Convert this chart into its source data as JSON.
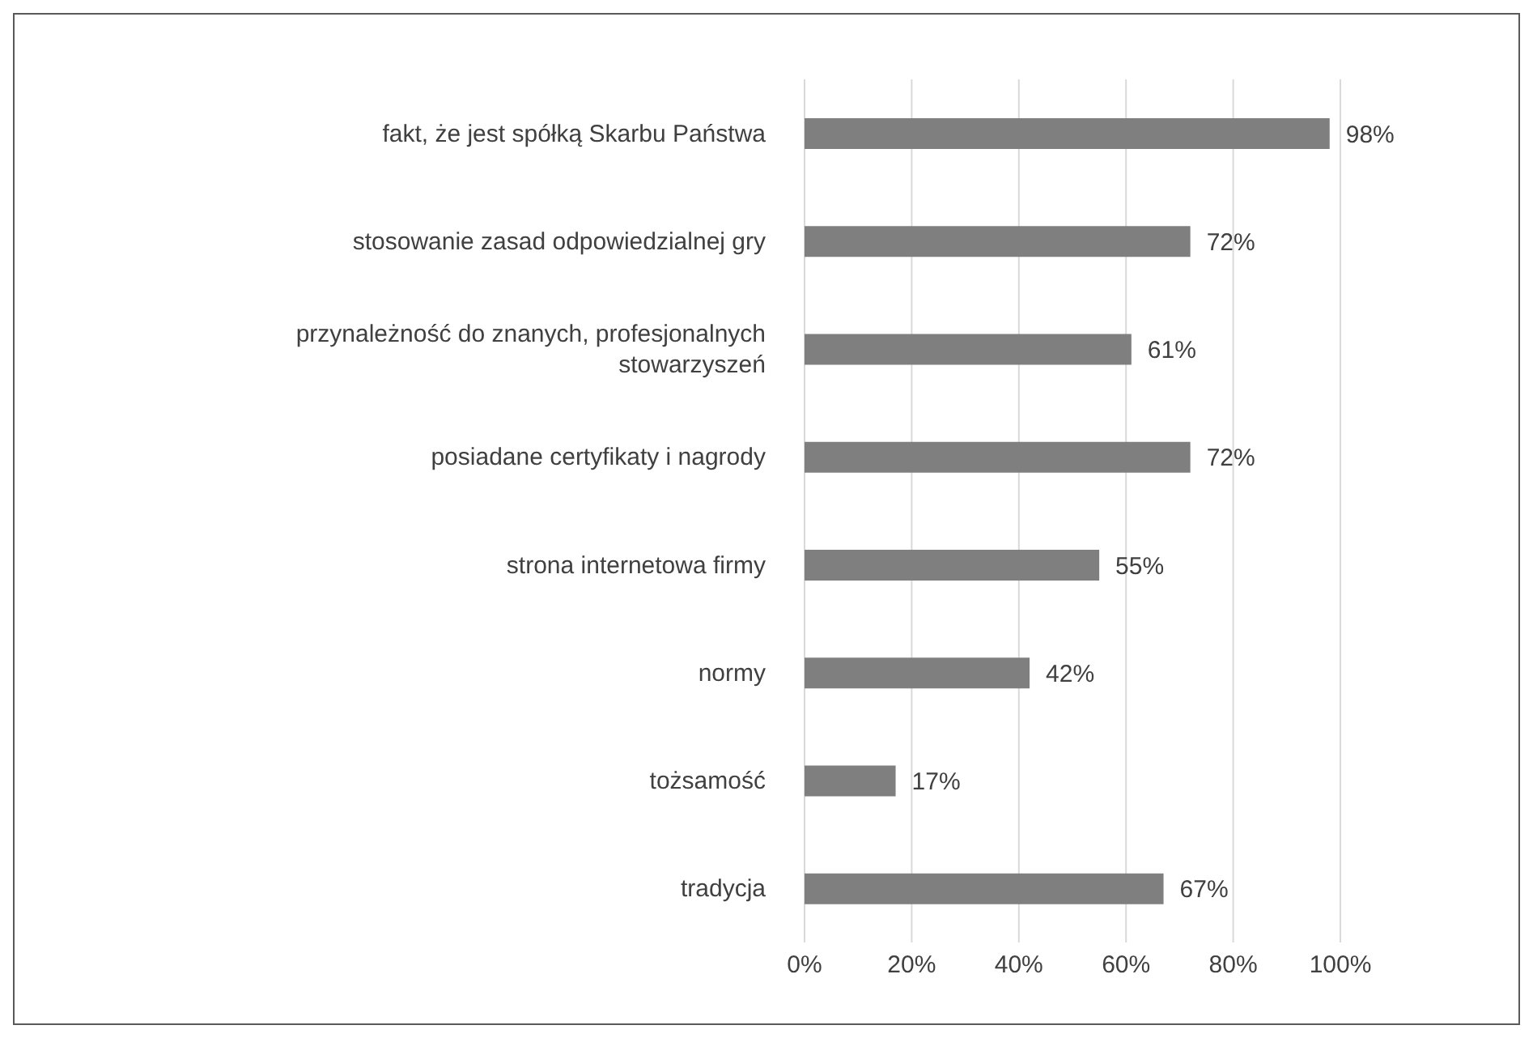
{
  "chart_data": {
    "type": "bar",
    "orientation": "horizontal",
    "categories": [
      "fakt, że jest spółką Skarbu Państwa",
      "stosowanie zasad odpowiedzialnej gry",
      "przynależność do znanych, profesjonalnych stowarzyszeń",
      "posiadane certyfikaty i nagrody",
      "strona internetowa firmy",
      "normy",
      "tożsamość",
      "tradycja"
    ],
    "values": [
      98,
      72,
      61,
      72,
      55,
      42,
      17,
      67
    ],
    "value_labels": [
      "98%",
      "72%",
      "61%",
      "72%",
      "55%",
      "42%",
      "17%",
      "67%"
    ],
    "color": "#7f7f7f",
    "xlim": [
      0,
      100
    ],
    "xticks": [
      {
        "value": 0,
        "label": "0%"
      },
      {
        "value": 20,
        "label": "20%"
      },
      {
        "value": 40,
        "label": "40%"
      },
      {
        "value": 60,
        "label": "60%"
      },
      {
        "value": 80,
        "label": "80%"
      },
      {
        "value": 100,
        "label": "100%"
      }
    ],
    "grid": "x",
    "legend": false
  }
}
